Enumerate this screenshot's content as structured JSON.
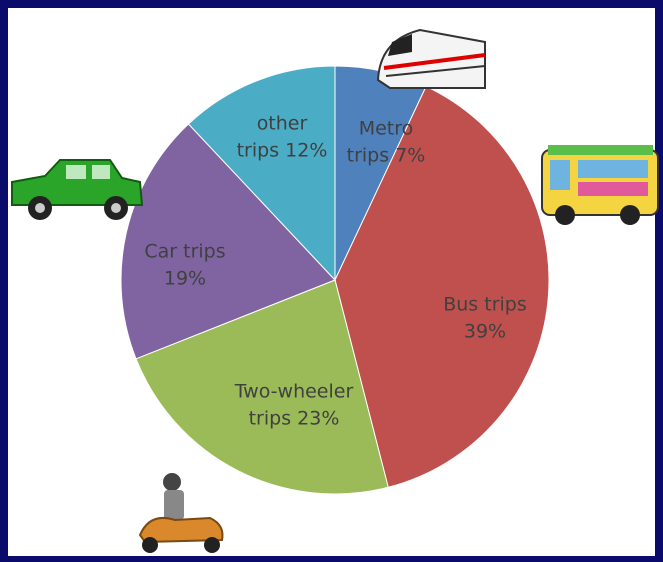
{
  "chart_data": {
    "type": "pie",
    "categories": [
      "Metro trips",
      "Bus trips",
      "Two-wheeler trips",
      "Car trips",
      "other trips"
    ],
    "values": [
      7,
      39,
      23,
      19,
      12
    ],
    "value_labels": [
      "7%",
      "39%",
      "23%",
      "19%",
      "12%"
    ],
    "colors": [
      "#4f81bd",
      "#c0504d",
      "#9bbb59",
      "#8064a2",
      "#4bacc6"
    ]
  }
}
